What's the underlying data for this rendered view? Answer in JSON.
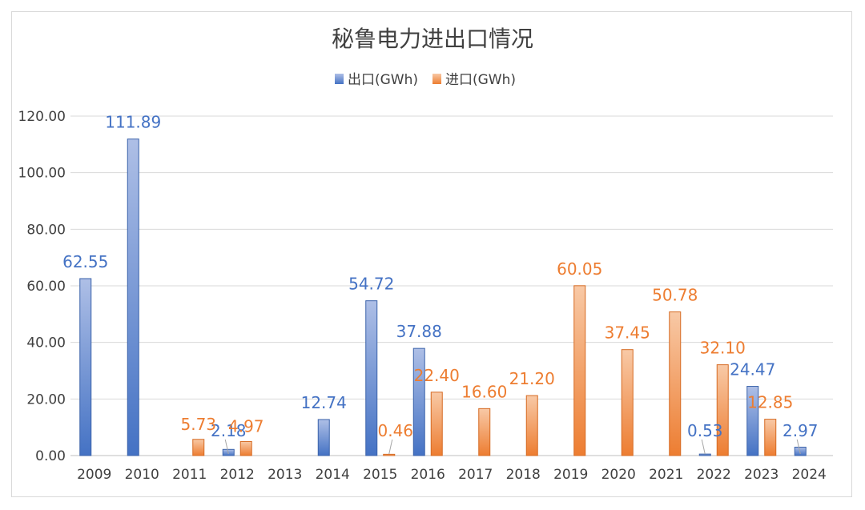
{
  "chart_data": {
    "type": "bar",
    "title": "秘鲁电力进出口情况",
    "categories": [
      "2009",
      "2010",
      "2011",
      "2012",
      "2013",
      "2014",
      "2015",
      "2016",
      "2017",
      "2018",
      "2019",
      "2020",
      "2021",
      "2022",
      "2023",
      "2024"
    ],
    "series": [
      {
        "name": "出口(GWh)",
        "color": "#4472C4",
        "values": [
          62.55,
          111.89,
          null,
          2.18,
          null,
          12.74,
          54.72,
          37.88,
          null,
          null,
          null,
          null,
          null,
          0.53,
          24.47,
          2.97
        ],
        "labels": [
          "62.55",
          "111.89",
          null,
          "2.18",
          null,
          "12.74",
          "54.72",
          "37.88",
          null,
          null,
          null,
          null,
          null,
          "0.53",
          "24.47",
          "2.97"
        ]
      },
      {
        "name": "进口(GWh)",
        "color": "#ED7D31",
        "values": [
          null,
          null,
          5.73,
          4.97,
          null,
          null,
          0.46,
          22.4,
          16.6,
          21.2,
          60.05,
          37.45,
          50.78,
          32.1,
          12.85,
          null
        ],
        "labels": [
          null,
          null,
          "5.73",
          "4.97",
          null,
          null,
          "0.46",
          "22.40",
          "16.60",
          "21.20",
          "60.05",
          "37.45",
          "50.78",
          "32.10",
          "12.85",
          null
        ]
      }
    ],
    "ylim": [
      0,
      120
    ],
    "yticks": [
      "0.00",
      "20.00",
      "40.00",
      "60.00",
      "80.00",
      "100.00",
      "120.00"
    ],
    "xlabel": "",
    "ylabel": "",
    "grid": true,
    "legend": "top-center"
  }
}
